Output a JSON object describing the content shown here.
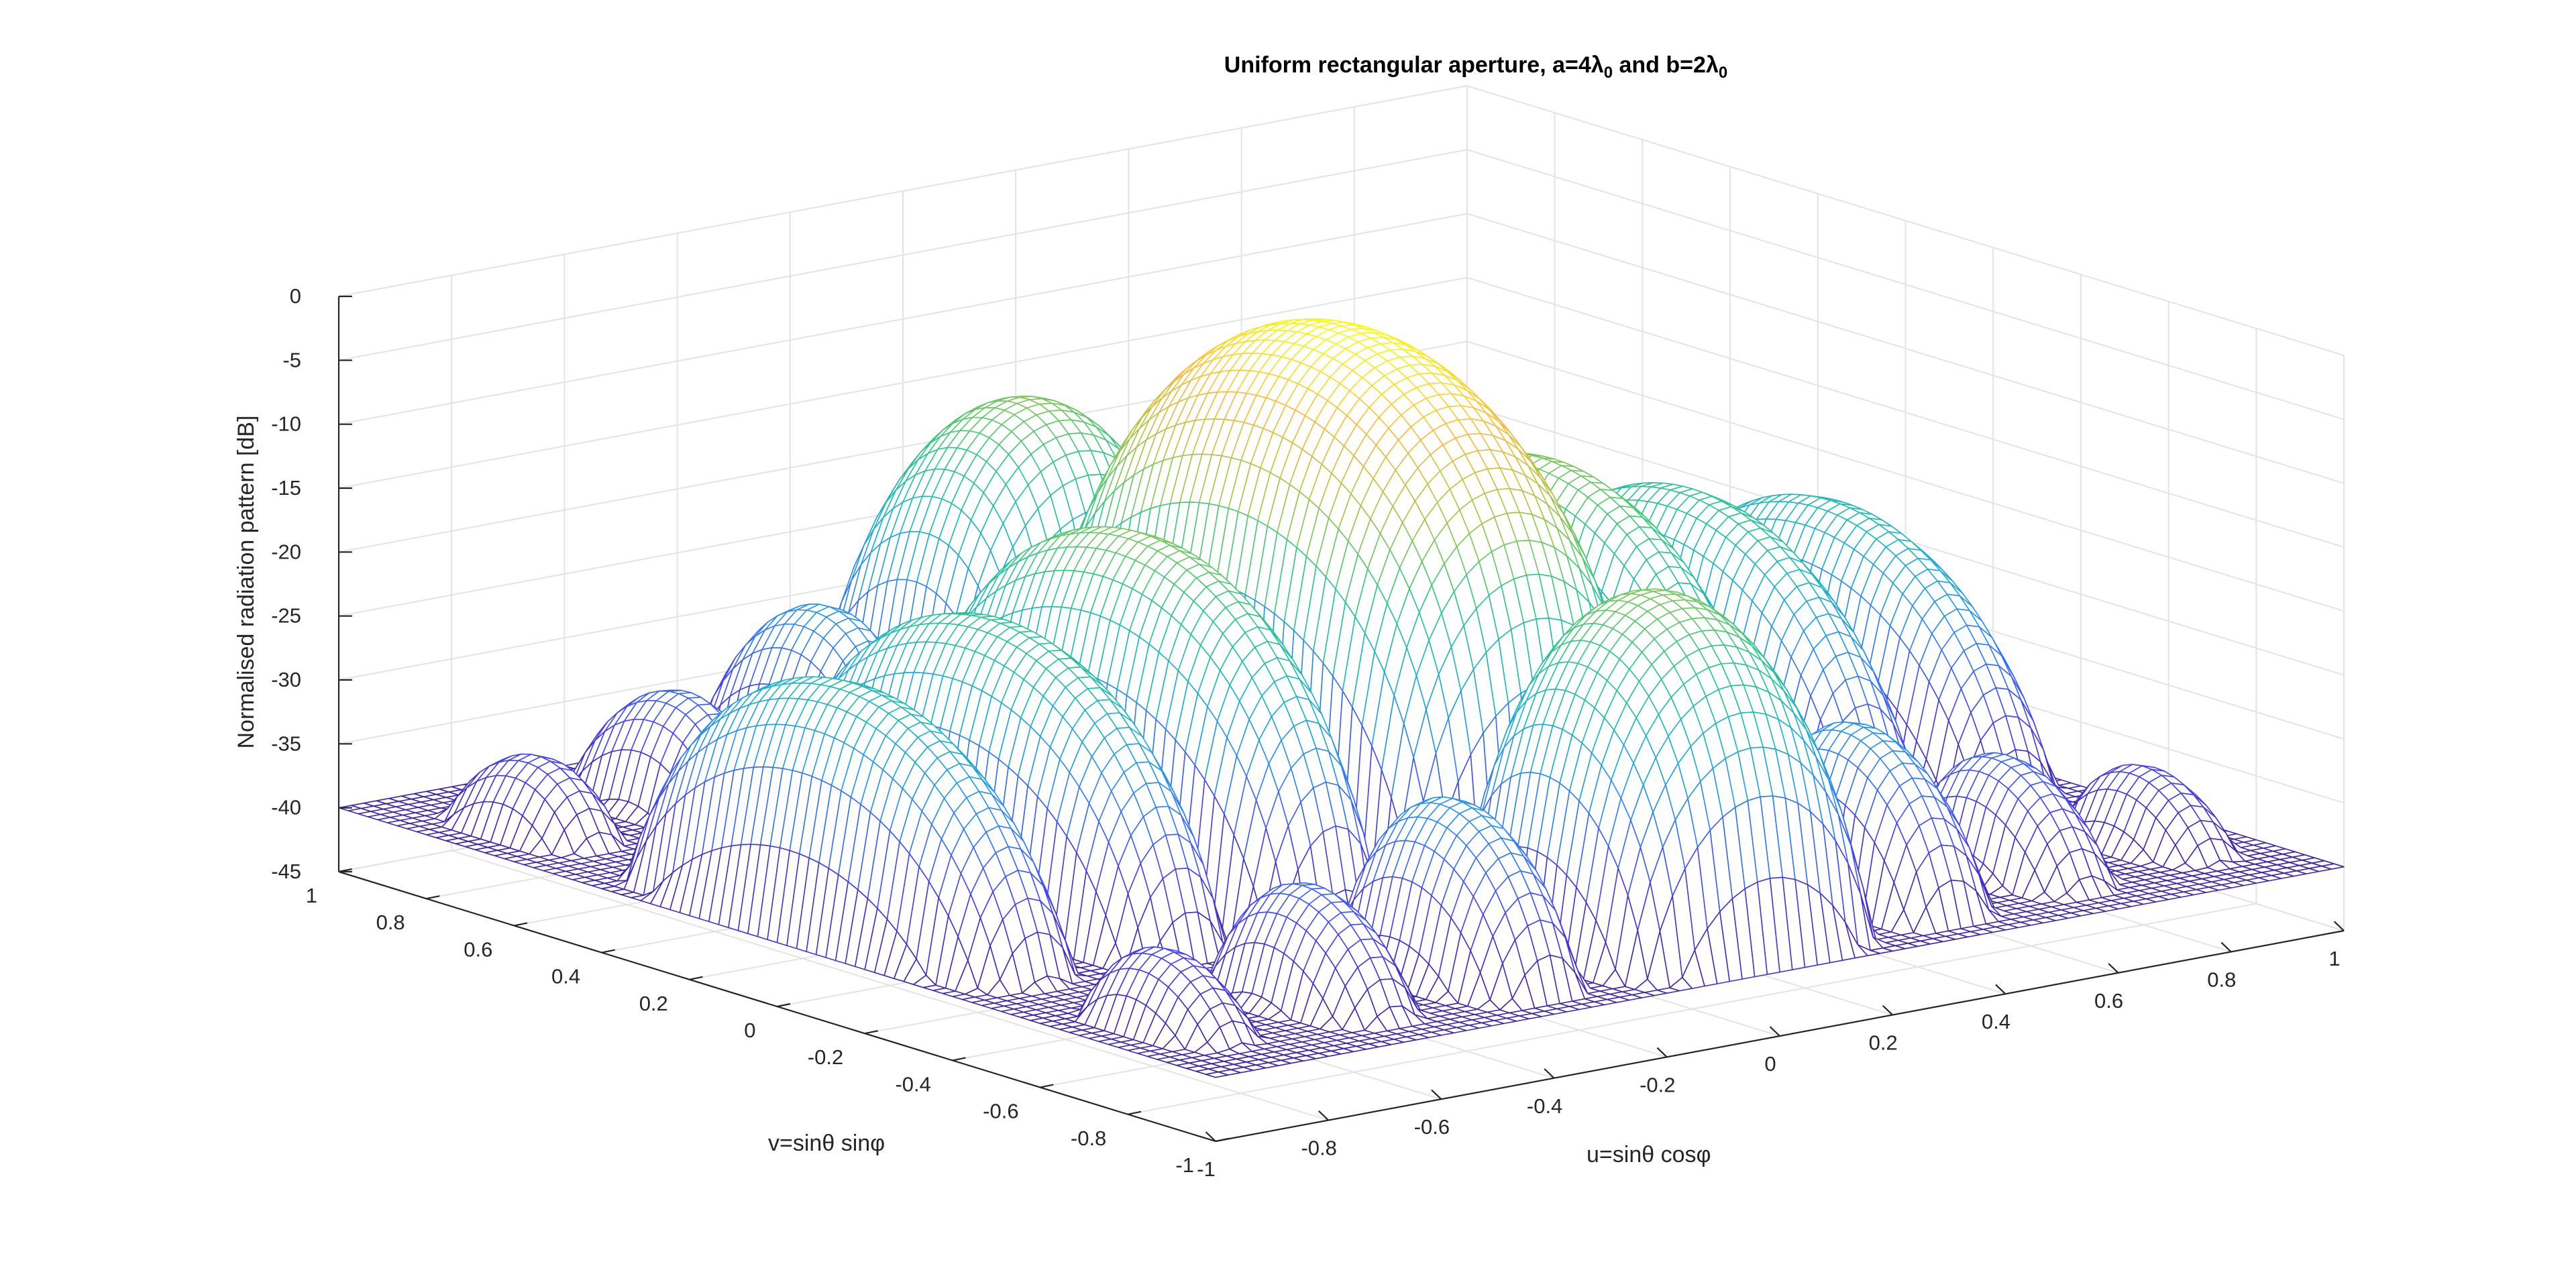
{
  "chart_data": {
    "type": "surface",
    "title": {
      "prefix": "Uniform rectangular aperture, a=4",
      "lambda": "λ",
      "sub1": "0",
      "mid": " and b=2",
      "sub2": "0"
    },
    "zlabel": "Normalised radiation pattern [dB]",
    "xlabel": {
      "prefix": "u=sin",
      "theta": "θ",
      "mid": " cos",
      "phi": "φ"
    },
    "ylabel": {
      "prefix": "v=sin",
      "theta": "θ",
      "mid": " sin",
      "phi": "φ"
    },
    "x_ticks": [
      "-1",
      "-0.8",
      "-0.6",
      "-0.4",
      "-0.2",
      "0",
      "0.2",
      "0.4",
      "0.6",
      "0.8",
      "1"
    ],
    "y_ticks": [
      "-1",
      "-0.8",
      "-0.6",
      "-0.4",
      "-0.2",
      "0",
      "0.2",
      "0.4",
      "0.6",
      "0.8",
      "1"
    ],
    "z_ticks": [
      "-45",
      "-40",
      "-35",
      "-30",
      "-25",
      "-20",
      "-15",
      "-10",
      "-5",
      "0"
    ],
    "xlim": [
      -1,
      1
    ],
    "ylim": [
      -1,
      1
    ],
    "zlim": [
      -45,
      0
    ],
    "aperture_a_wavelengths": 4,
    "aperture_b_wavelengths": 2,
    "floor_db": -40,
    "colormap": [
      "#3e26a8",
      "#4743f8",
      "#2e87f7",
      "#1bb5c8",
      "#31c883",
      "#a1c64a",
      "#f8ba3d",
      "#f9fb15"
    ],
    "grid": true
  }
}
